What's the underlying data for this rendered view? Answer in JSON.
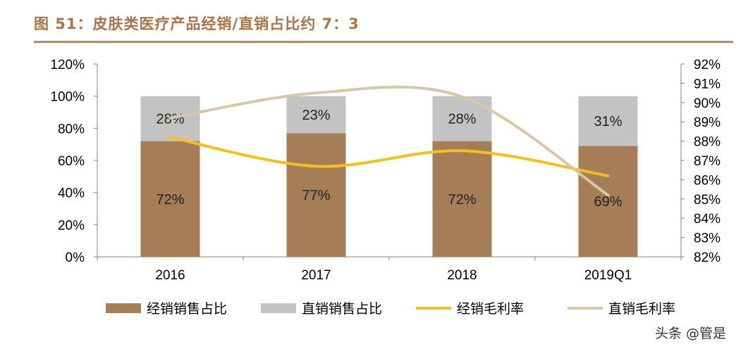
{
  "header": {
    "title": "图 51：皮肤类医疗产品经销/直销占比约 7：3"
  },
  "watermark": "头条 @管是",
  "chart_data": {
    "type": "bar",
    "stacked": true,
    "categories": [
      "2016",
      "2017",
      "2018",
      "2019Q1"
    ],
    "series": [
      {
        "name": "经销销售占比",
        "kind": "bar",
        "axis": "left",
        "color": "#a57e57",
        "values": [
          72,
          77,
          72,
          69
        ],
        "labels": [
          "72%",
          "77%",
          "72%",
          "69%"
        ]
      },
      {
        "name": "直销销售占比",
        "kind": "bar",
        "axis": "left",
        "color": "#c3c3c3",
        "values": [
          28,
          23,
          28,
          31
        ],
        "labels": [
          "28%",
          "23%",
          "28%",
          "31%"
        ]
      },
      {
        "name": "经销毛利率",
        "kind": "line",
        "axis": "right",
        "color": "#f5bf1d",
        "values": [
          88.2,
          86.7,
          87.5,
          86.2
        ]
      },
      {
        "name": "直销毛利率",
        "kind": "line",
        "axis": "right",
        "color": "#d8c7a4",
        "values": [
          89.2,
          90.5,
          90.3,
          85.2
        ]
      }
    ],
    "y_left": {
      "min": 0,
      "max": 120,
      "ticks": [
        "0%",
        "20%",
        "40%",
        "60%",
        "80%",
        "100%",
        "120%"
      ]
    },
    "y_right": {
      "min": 82,
      "max": 92,
      "ticks": [
        "82%",
        "83%",
        "84%",
        "85%",
        "86%",
        "87%",
        "88%",
        "89%",
        "90%",
        "91%",
        "92%"
      ]
    },
    "legend_position": "bottom"
  }
}
